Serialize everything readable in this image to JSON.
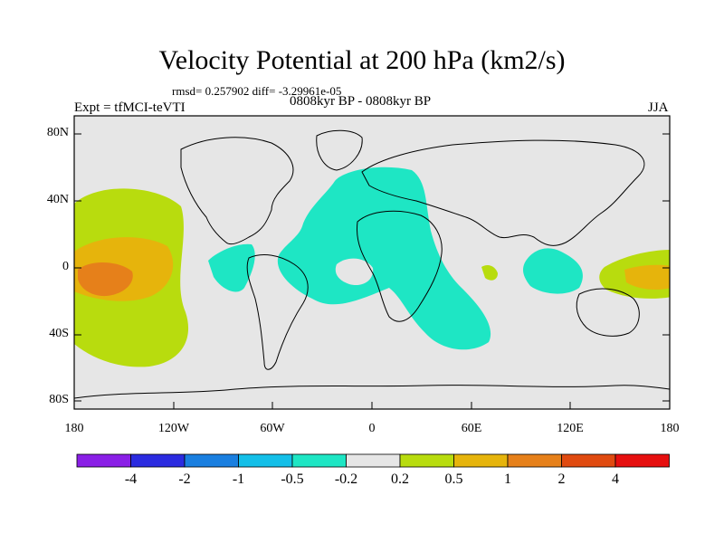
{
  "title": "Velocity Potential at 200 hPa (km2/s)",
  "stats": "rmsd= 0.257902 diff= -3.29961e-05",
  "left_label": "Expt = tfMCI-teVTI",
  "center_label": "0808kyr BP - 0808kyr BP",
  "right_label": "JJA",
  "y_axis": {
    "ticks": [
      "80N",
      "40N",
      "0",
      "40S",
      "80S"
    ]
  },
  "x_axis": {
    "ticks": [
      "180",
      "120W",
      "60W",
      "0",
      "60E",
      "120E",
      "180"
    ]
  },
  "colorbar": {
    "labels": [
      "-4",
      "-2",
      "-1",
      "-0.5",
      "-0.2",
      "0.2",
      "0.5",
      "1",
      "2",
      "4"
    ],
    "colors": [
      "#8a1fe6",
      "#2b2be0",
      "#1a7fe0",
      "#14bfe8",
      "#1ee6c4",
      "#e6e6e6",
      "#b8dc0e",
      "#e6b40c",
      "#e6801a",
      "#e04a10",
      "#e60f0f"
    ]
  },
  "chart_data": {
    "type": "heatmap",
    "title": "Velocity Potential at 200 hPa (km2/s)",
    "xlabel": "",
    "ylabel": "",
    "x_range": [
      -180,
      180
    ],
    "y_range": [
      -90,
      90
    ],
    "levels": [
      -4,
      -2,
      -1,
      -0.5,
      -0.2,
      0.2,
      0.5,
      1,
      2,
      4
    ],
    "features": [
      {
        "region": "Central/East Pacific",
        "sign": "positive",
        "max_level": 1
      },
      {
        "region": "West Pacific",
        "sign": "positive",
        "max_level": 0.5
      },
      {
        "region": "Atlantic-Europe-Africa",
        "sign": "negative",
        "min_level": -0.5
      },
      {
        "region": "Central America",
        "sign": "negative",
        "min_level": -0.5
      },
      {
        "region": "Maritime Continent",
        "sign": "negative",
        "min_level": -0.5
      }
    ]
  }
}
